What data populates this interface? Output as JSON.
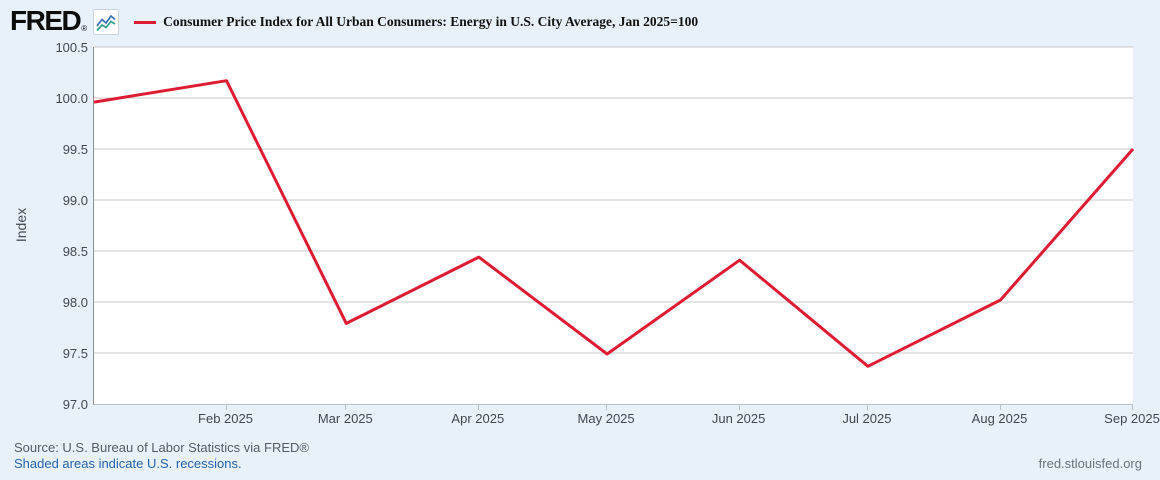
{
  "header": {
    "logo_text": "FRED",
    "logo_reg": "®",
    "title": "Consumer Price Index for All Urban Consumers: Energy in U.S. City Average, Jan 2025=100"
  },
  "footer": {
    "source": "Source: U.S. Bureau of Labor Statistics via FRED®",
    "recession_note": "Shaded areas indicate U.S. recessions.",
    "site_link": "fred.stlouisfed.org"
  },
  "colors": {
    "page_background": "#e8f1fa",
    "plot_background": "#ffffff",
    "gridline": "#c8c8c8",
    "axis_left": "#8c8c8c",
    "axis_bottom": "#b9c2cc",
    "tick_label": "#42484e",
    "line": "#dd1b32",
    "link_blue": "#2563ad",
    "logo_icon_blue": "#3b6cb4",
    "logo_icon_teal": "#2f9e88"
  },
  "chart_data": {
    "type": "line",
    "title": "Consumer Price Index for All Urban Consumers: Energy in U.S. City Average, Jan 2025=100",
    "xlabel": "",
    "ylabel": "Index",
    "ylim": [
      97.0,
      100.5
    ],
    "x_range": [
      "2025-01-01",
      "2025-09-01"
    ],
    "grid": true,
    "legend_position": "top",
    "y_ticks": [
      "100.5",
      "100.0",
      "99.5",
      "99.0",
      "98.5",
      "98.0",
      "97.5",
      "97.0"
    ],
    "x_ticks": [
      {
        "date": "2025-02-01",
        "label": "Feb 2025"
      },
      {
        "date": "2025-03-01",
        "label": "Mar 2025"
      },
      {
        "date": "2025-04-01",
        "label": "Apr 2025"
      },
      {
        "date": "2025-05-01",
        "label": "May 2025"
      },
      {
        "date": "2025-06-01",
        "label": "Jun 2025"
      },
      {
        "date": "2025-07-01",
        "label": "Jul 2025"
      },
      {
        "date": "2025-08-01",
        "label": "Aug 2025"
      },
      {
        "date": "2025-09-01",
        "label": "Sep 2025"
      }
    ],
    "series": [
      {
        "name": "Consumer Price Index for All Urban Consumers: Energy in U.S. City Average, Jan 2025=100",
        "color": "#dd1b32",
        "points": [
          {
            "date": "2025-01-01",
            "value": 99.96
          },
          {
            "date": "2025-02-01",
            "value": 100.17
          },
          {
            "date": "2025-03-01",
            "value": 97.79
          },
          {
            "date": "2025-04-01",
            "value": 98.44
          },
          {
            "date": "2025-05-01",
            "value": 97.49
          },
          {
            "date": "2025-06-01",
            "value": 98.41
          },
          {
            "date": "2025-07-01",
            "value": 97.37
          },
          {
            "date": "2025-08-01",
            "value": 98.02
          },
          {
            "date": "2025-09-01",
            "value": 99.5
          }
        ]
      }
    ]
  }
}
